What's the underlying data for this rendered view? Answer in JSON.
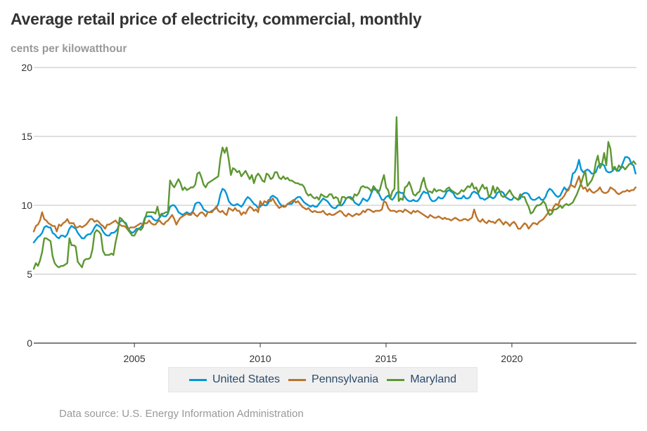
{
  "header": {
    "title": "Average retail price of electricity, commercial, monthly",
    "subtitle": "cents per kilowatthour"
  },
  "footer": {
    "source": "Data source: U.S. Energy Information Administration"
  },
  "chart_data": {
    "type": "line",
    "title": "Average retail price of electricity, commercial, monthly",
    "ylabel": "cents per kilowatthour",
    "xlabel": "",
    "x_start": "2001-01",
    "x_end": "2024-12",
    "frequency": "monthly",
    "xlim": [
      2001.0,
      2024.95
    ],
    "ylim": [
      0,
      20
    ],
    "yticks": [
      0,
      5,
      10,
      15,
      20
    ],
    "ytick_labels": [
      "0",
      "5",
      "10",
      "15",
      "20"
    ],
    "xticks": [
      2005,
      2010,
      2015,
      2020
    ],
    "xtick_labels": [
      "2005",
      "2010",
      "2015",
      "2020"
    ],
    "grid": "horizontal",
    "legend_position": "bottom-center",
    "series": [
      {
        "name": "United States",
        "color": "#0096d7",
        "values": [
          7.3,
          7.5,
          7.7,
          7.8,
          8.0,
          8.4,
          8.5,
          8.4,
          8.4,
          8.0,
          7.9,
          7.7,
          7.6,
          7.8,
          7.8,
          7.7,
          7.9,
          8.3,
          8.5,
          8.4,
          8.3,
          8.0,
          7.8,
          7.6,
          7.6,
          7.8,
          7.9,
          7.9,
          8.1,
          8.4,
          8.6,
          8.5,
          8.4,
          8.1,
          7.9,
          7.8,
          7.8,
          8.0,
          8.0,
          8.1,
          8.3,
          8.8,
          8.9,
          8.8,
          8.7,
          8.3,
          8.1,
          8.0,
          8.1,
          8.3,
          8.3,
          8.4,
          8.6,
          9.1,
          9.2,
          9.2,
          9.2,
          9.0,
          8.9,
          8.9,
          9.1,
          9.3,
          9.2,
          9.2,
          9.4,
          9.9,
          10.0,
          10.0,
          9.8,
          9.5,
          9.4,
          9.3,
          9.4,
          9.5,
          9.4,
          9.4,
          9.6,
          10.1,
          10.2,
          10.2,
          10.0,
          9.7,
          9.6,
          9.5,
          9.5,
          9.6,
          9.7,
          9.8,
          10.1,
          10.8,
          11.2,
          11.1,
          10.8,
          10.3,
          10.1,
          10.0,
          10.0,
          10.1,
          10.0,
          9.9,
          10.1,
          10.4,
          10.6,
          10.5,
          10.3,
          10.1,
          10.0,
          9.8,
          9.9,
          10.1,
          10.0,
          10.0,
          10.2,
          10.6,
          10.7,
          10.6,
          10.5,
          10.2,
          10.0,
          9.9,
          9.9,
          10.1,
          10.1,
          10.1,
          10.3,
          10.5,
          10.6,
          10.6,
          10.4,
          10.2,
          10.1,
          10.0,
          9.9,
          10.0,
          9.9,
          9.9,
          10.1,
          10.3,
          10.5,
          10.4,
          10.3,
          10.1,
          9.9,
          9.8,
          9.8,
          10.0,
          10.0,
          10.0,
          10.2,
          10.5,
          10.6,
          10.6,
          10.5,
          10.2,
          10.1,
          10.0,
          10.2,
          10.5,
          10.4,
          10.3,
          10.5,
          10.9,
          11.2,
          11.1,
          11.1,
          10.7,
          10.4,
          10.4,
          10.6,
          10.7,
          10.5,
          10.4,
          10.6,
          10.9,
          11.0,
          10.9,
          10.9,
          10.6,
          10.4,
          10.3,
          10.3,
          10.4,
          10.3,
          10.3,
          10.5,
          10.8,
          11.0,
          10.9,
          10.9,
          10.5,
          10.3,
          10.3,
          10.4,
          10.6,
          10.5,
          10.5,
          10.7,
          11.0,
          11.1,
          11.0,
          10.9,
          10.6,
          10.5,
          10.5,
          10.5,
          10.7,
          10.5,
          10.5,
          10.6,
          10.9,
          11.0,
          10.9,
          10.8,
          10.5,
          10.5,
          10.4,
          10.5,
          10.6,
          10.6,
          10.5,
          10.6,
          10.9,
          11.0,
          11.0,
          10.9,
          10.6,
          10.5,
          10.4,
          10.4,
          10.6,
          10.5,
          10.4,
          10.5,
          10.8,
          10.9,
          10.9,
          10.8,
          10.5,
          10.4,
          10.4,
          10.5,
          10.6,
          10.4,
          10.4,
          10.6,
          11.0,
          11.2,
          11.1,
          10.9,
          10.7,
          10.6,
          10.7,
          11.0,
          11.3,
          11.1,
          11.2,
          11.5,
          12.3,
          12.4,
          12.7,
          13.3,
          12.6,
          12.4,
          12.5,
          12.6,
          12.5,
          12.3,
          12.3,
          12.4,
          12.8,
          13.0,
          13.0,
          12.9,
          12.5,
          12.4,
          12.4,
          12.5,
          12.7,
          12.5,
          12.5,
          12.7,
          13.1,
          13.5,
          13.5,
          13.4,
          13.0,
          12.9,
          12.3
        ]
      },
      {
        "name": "Pennsylvania",
        "color": "#bd732a",
        "values": [
          8.1,
          8.5,
          8.6,
          8.9,
          9.5,
          9.0,
          8.9,
          8.7,
          8.6,
          8.5,
          8.5,
          8.1,
          8.6,
          8.5,
          8.7,
          8.8,
          9.0,
          8.7,
          8.7,
          8.7,
          8.4,
          8.4,
          8.5,
          8.4,
          8.5,
          8.6,
          8.8,
          9.0,
          9.0,
          8.8,
          8.9,
          8.8,
          8.6,
          8.5,
          8.3,
          8.6,
          8.6,
          8.7,
          8.8,
          8.9,
          8.7,
          8.6,
          8.5,
          8.5,
          8.4,
          8.2,
          8.4,
          8.4,
          8.4,
          8.5,
          8.6,
          8.7,
          8.6,
          8.7,
          8.7,
          8.9,
          8.7,
          8.6,
          8.6,
          8.8,
          8.9,
          8.7,
          8.6,
          8.8,
          8.9,
          9.1,
          9.3,
          9.0,
          8.6,
          8.9,
          9.1,
          9.2,
          9.3,
          9.4,
          9.3,
          9.3,
          9.5,
          9.3,
          9.2,
          9.4,
          9.5,
          9.4,
          9.2,
          9.5,
          9.5,
          9.5,
          9.7,
          9.9,
          9.6,
          9.5,
          9.6,
          9.4,
          9.3,
          9.8,
          9.7,
          9.6,
          9.8,
          9.6,
          9.6,
          9.3,
          9.5,
          9.4,
          9.7,
          9.9,
          9.8,
          9.6,
          9.7,
          9.5,
          10.3,
          10.0,
          10.3,
          10.2,
          10.4,
          10.3,
          10.5,
          10.2,
          10.0,
          9.8,
          9.9,
          10.0,
          9.9,
          10.1,
          10.2,
          10.3,
          10.4,
          10.2,
          10.3,
          10.1,
          9.9,
          9.8,
          9.7,
          9.8,
          9.6,
          9.5,
          9.6,
          9.5,
          9.5,
          9.5,
          9.6,
          9.4,
          9.3,
          9.4,
          9.3,
          9.3,
          9.4,
          9.5,
          9.6,
          9.5,
          9.3,
          9.2,
          9.4,
          9.3,
          9.2,
          9.3,
          9.4,
          9.3,
          9.4,
          9.6,
          9.5,
          9.7,
          9.7,
          9.6,
          9.5,
          9.6,
          9.6,
          9.6,
          9.7,
          10.3,
          10.2,
          9.8,
          9.6,
          9.6,
          9.6,
          9.5,
          9.6,
          9.6,
          9.5,
          9.7,
          9.6,
          9.5,
          9.4,
          9.6,
          9.5,
          9.6,
          9.5,
          9.4,
          9.3,
          9.2,
          9.1,
          9.3,
          9.2,
          9.1,
          9.1,
          9.2,
          9.1,
          9.0,
          9.1,
          9.0,
          9.0,
          8.9,
          9.0,
          9.1,
          9.0,
          8.9,
          8.9,
          9.0,
          9.0,
          8.9,
          9.0,
          9.1,
          9.7,
          9.2,
          8.9,
          8.8,
          9.0,
          8.8,
          8.7,
          8.9,
          8.8,
          8.8,
          8.7,
          8.9,
          9.0,
          8.8,
          8.6,
          8.8,
          8.7,
          8.5,
          8.7,
          8.8,
          8.6,
          8.3,
          8.3,
          8.5,
          8.7,
          8.6,
          8.3,
          8.5,
          8.7,
          8.7,
          8.6,
          8.8,
          8.9,
          9.0,
          9.2,
          9.4,
          9.7,
          9.6,
          9.9,
          10.1,
          10.0,
          10.4,
          10.5,
          10.7,
          11.0,
          11.1,
          11.5,
          11.4,
          11.3,
          11.7,
          12.1,
          11.5,
          11.2,
          11.3,
          11.0,
          11.2,
          11.0,
          10.9,
          11.0,
          11.1,
          11.3,
          11.0,
          10.9,
          10.9,
          11.0,
          11.3,
          11.2,
          11.1,
          10.9,
          10.8,
          10.9,
          11.0,
          11.0,
          11.1,
          11.0,
          11.1,
          11.1,
          11.3
        ]
      },
      {
        "name": "Maryland",
        "color": "#5d9732",
        "values": [
          5.4,
          5.8,
          5.6,
          6.0,
          6.6,
          7.6,
          7.6,
          7.5,
          7.4,
          6.3,
          5.8,
          5.6,
          5.5,
          5.6,
          5.6,
          5.7,
          5.8,
          7.6,
          7.1,
          7.1,
          7.0,
          5.9,
          5.7,
          5.5,
          6.0,
          6.1,
          6.1,
          6.2,
          6.8,
          8.0,
          8.2,
          8.1,
          7.9,
          6.7,
          6.4,
          6.4,
          6.4,
          6.5,
          6.4,
          7.3,
          8.0,
          9.1,
          9.0,
          8.8,
          8.6,
          8.2,
          8.0,
          7.8,
          7.8,
          8.1,
          8.3,
          8.2,
          8.4,
          9.0,
          9.5,
          9.5,
          9.5,
          9.5,
          9.4,
          9.9,
          9.2,
          9.4,
          9.4,
          9.5,
          9.5,
          11.8,
          11.5,
          11.3,
          11.6,
          11.9,
          11.6,
          11.1,
          11.3,
          11.1,
          11.2,
          11.3,
          11.3,
          11.5,
          12.3,
          12.4,
          12.0,
          11.5,
          11.3,
          11.6,
          11.7,
          11.8,
          11.9,
          12.0,
          12.1,
          13.4,
          14.2,
          13.8,
          14.2,
          13.3,
          12.2,
          12.7,
          12.6,
          12.4,
          12.5,
          12.1,
          12.3,
          12.5,
          12.2,
          11.9,
          12.2,
          11.6,
          12.1,
          12.3,
          12.1,
          11.8,
          11.7,
          12.3,
          12.2,
          11.9,
          12.0,
          12.4,
          12.4,
          12.0,
          11.9,
          12.1,
          11.9,
          12.0,
          11.8,
          11.8,
          11.7,
          11.6,
          11.6,
          11.5,
          11.5,
          11.3,
          10.9,
          10.7,
          10.8,
          10.6,
          10.5,
          10.6,
          10.4,
          10.8,
          10.7,
          10.6,
          10.6,
          10.8,
          10.8,
          10.5,
          10.6,
          10.5,
          10.0,
          10.6,
          10.6,
          10.5,
          10.6,
          10.5,
          10.4,
          10.8,
          10.7,
          10.9,
          11.3,
          11.4,
          11.3,
          11.3,
          11.2,
          11.0,
          11.4,
          11.2,
          10.9,
          11.1,
          11.7,
          12.2,
          11.3,
          11.1,
          10.5,
          11.0,
          11.2,
          16.4,
          10.3,
          10.5,
          10.4,
          11.3,
          11.4,
          11.7,
          11.3,
          10.8,
          10.7,
          10.9,
          11.0,
          11.6,
          12.0,
          11.3,
          11.0,
          11.0,
          10.9,
          11.2,
          11.0,
          11.1,
          11.1,
          11.0,
          11.0,
          11.2,
          11.3,
          11.1,
          11.0,
          10.9,
          10.8,
          10.9,
          11.1,
          11.0,
          11.2,
          11.4,
          11.3,
          11.6,
          11.2,
          11.3,
          10.9,
          11.2,
          11.5,
          11.2,
          11.3,
          10.6,
          10.8,
          11.4,
          10.9,
          11.3,
          11.1,
          10.7,
          10.6,
          10.7,
          10.9,
          11.1,
          10.8,
          10.6,
          10.5,
          10.4,
          10.8,
          10.6,
          10.6,
          10.2,
          9.9,
          9.4,
          9.5,
          9.8,
          10.0,
          10.0,
          10.1,
          10.3,
          10.1,
          9.6,
          9.3,
          9.4,
          9.7,
          9.7,
          9.8,
          10.0,
          9.8,
          10.0,
          10.1,
          10.0,
          10.1,
          10.2,
          10.5,
          10.8,
          11.2,
          11.6,
          12.1,
          12.5,
          11.4,
          11.6,
          11.8,
          12.2,
          13.1,
          13.6,
          12.7,
          13.0,
          13.8,
          12.9,
          14.6,
          14.1,
          12.6,
          12.8,
          12.5,
          12.9,
          12.7,
          12.8,
          12.6,
          12.8,
          13.0,
          13.0,
          13.2,
          13.0
        ]
      }
    ]
  }
}
